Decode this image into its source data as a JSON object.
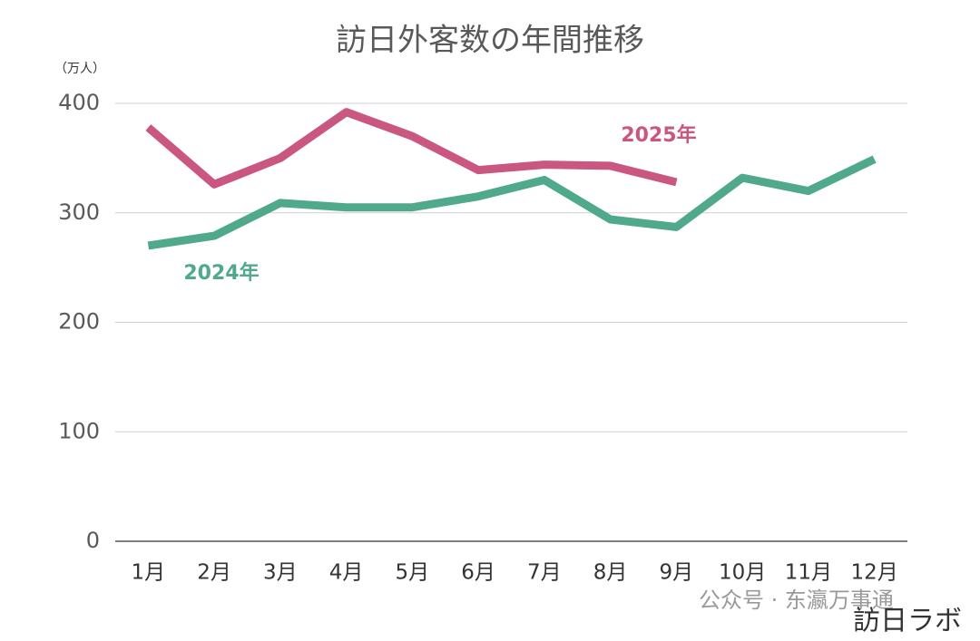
{
  "chart_data": {
    "type": "line",
    "title": "訪日外客数の年間推移",
    "unit_label": "（万人）",
    "categories": [
      "1月",
      "2月",
      "3月",
      "4月",
      "5月",
      "6月",
      "7月",
      "8月",
      "9月",
      "10月",
      "11月",
      "12月"
    ],
    "series": [
      {
        "name": "2025年",
        "color": "#c9577f",
        "values": [
          378,
          326,
          350,
          392,
          370,
          339,
          344,
          343,
          328,
          null,
          null,
          null
        ]
      },
      {
        "name": "2024年",
        "color": "#4fa98a",
        "values": [
          270,
          279,
          309,
          305,
          305,
          315,
          330,
          294,
          287,
          332,
          320,
          349
        ]
      }
    ],
    "ylim": [
      0,
      400
    ],
    "yticks": [
      0,
      100,
      200,
      300,
      400
    ],
    "grid": true,
    "watermarks": [
      "公众号 · 东瀛万事通",
      "訪日ラボ"
    ]
  }
}
